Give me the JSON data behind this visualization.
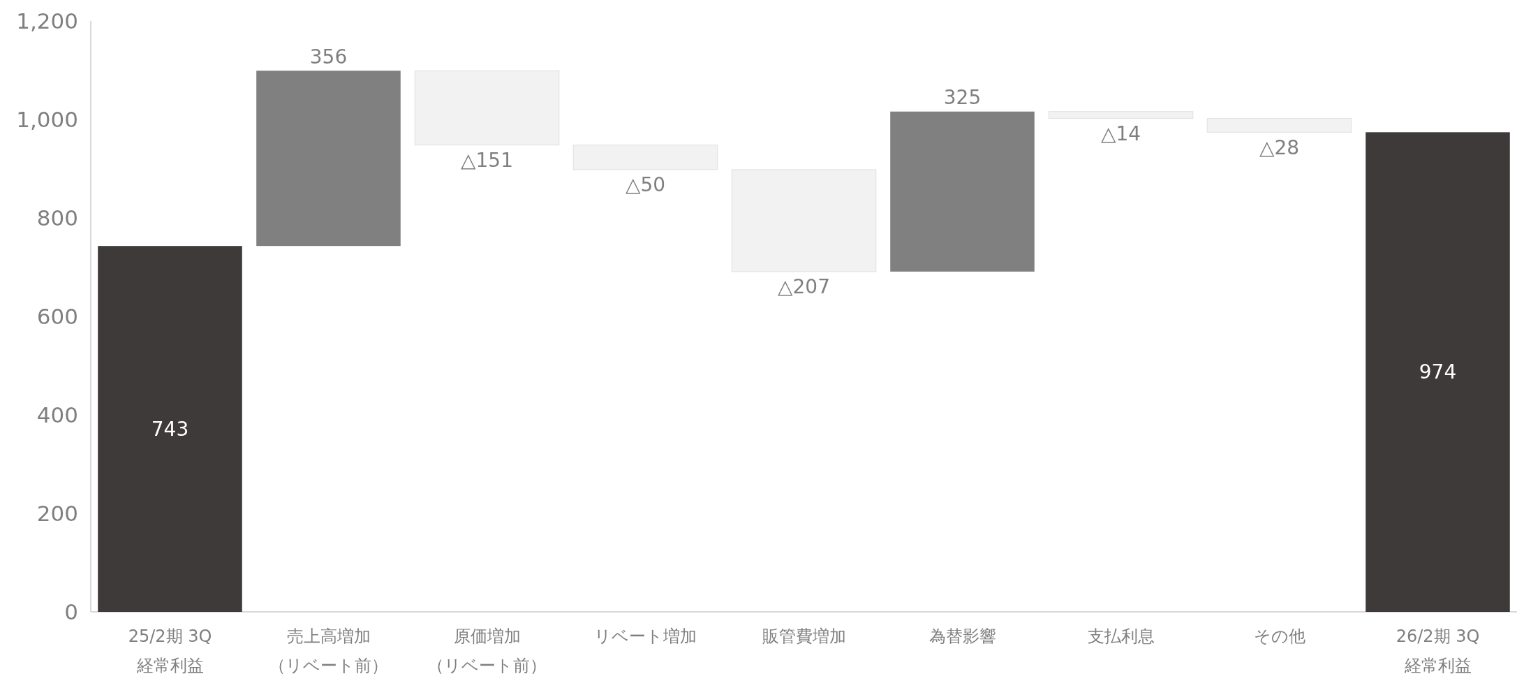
{
  "chart_data": {
    "type": "bar",
    "categories": [
      "25/2期 3Q 経常利益",
      "売上高増加（リベート前）",
      "原価増加（リベート前）",
      "リベート増加",
      "販管費増加",
      "為替影響",
      "支払利息",
      "その他",
      "26/2期 3Q 経常利益"
    ],
    "values": [
      743,
      356,
      -151,
      -50,
      -207,
      325,
      -14,
      -28,
      974
    ],
    "base": [
      0,
      743,
      1099,
      948,
      898,
      691,
      1016,
      1002,
      0
    ],
    "colors": [
      "#3e3a39",
      "#808080",
      "#f2f2f2",
      "#f2f2f2",
      "#f2f2f2",
      "#808080",
      "#f2f2f2",
      "#f2f2f2",
      "#3e3a39"
    ],
    "value_labels": [
      "743",
      "356",
      "△151",
      "△50",
      "△207",
      "325",
      "△14",
      "△28",
      "974"
    ],
    "ylim": [
      0,
      1200
    ],
    "yticks": [
      0,
      200,
      400,
      600,
      800,
      {
        "value": 1000,
        "label": "1,000"
      },
      {
        "value": 1200,
        "label": "1,200"
      }
    ],
    "grid": false
  }
}
